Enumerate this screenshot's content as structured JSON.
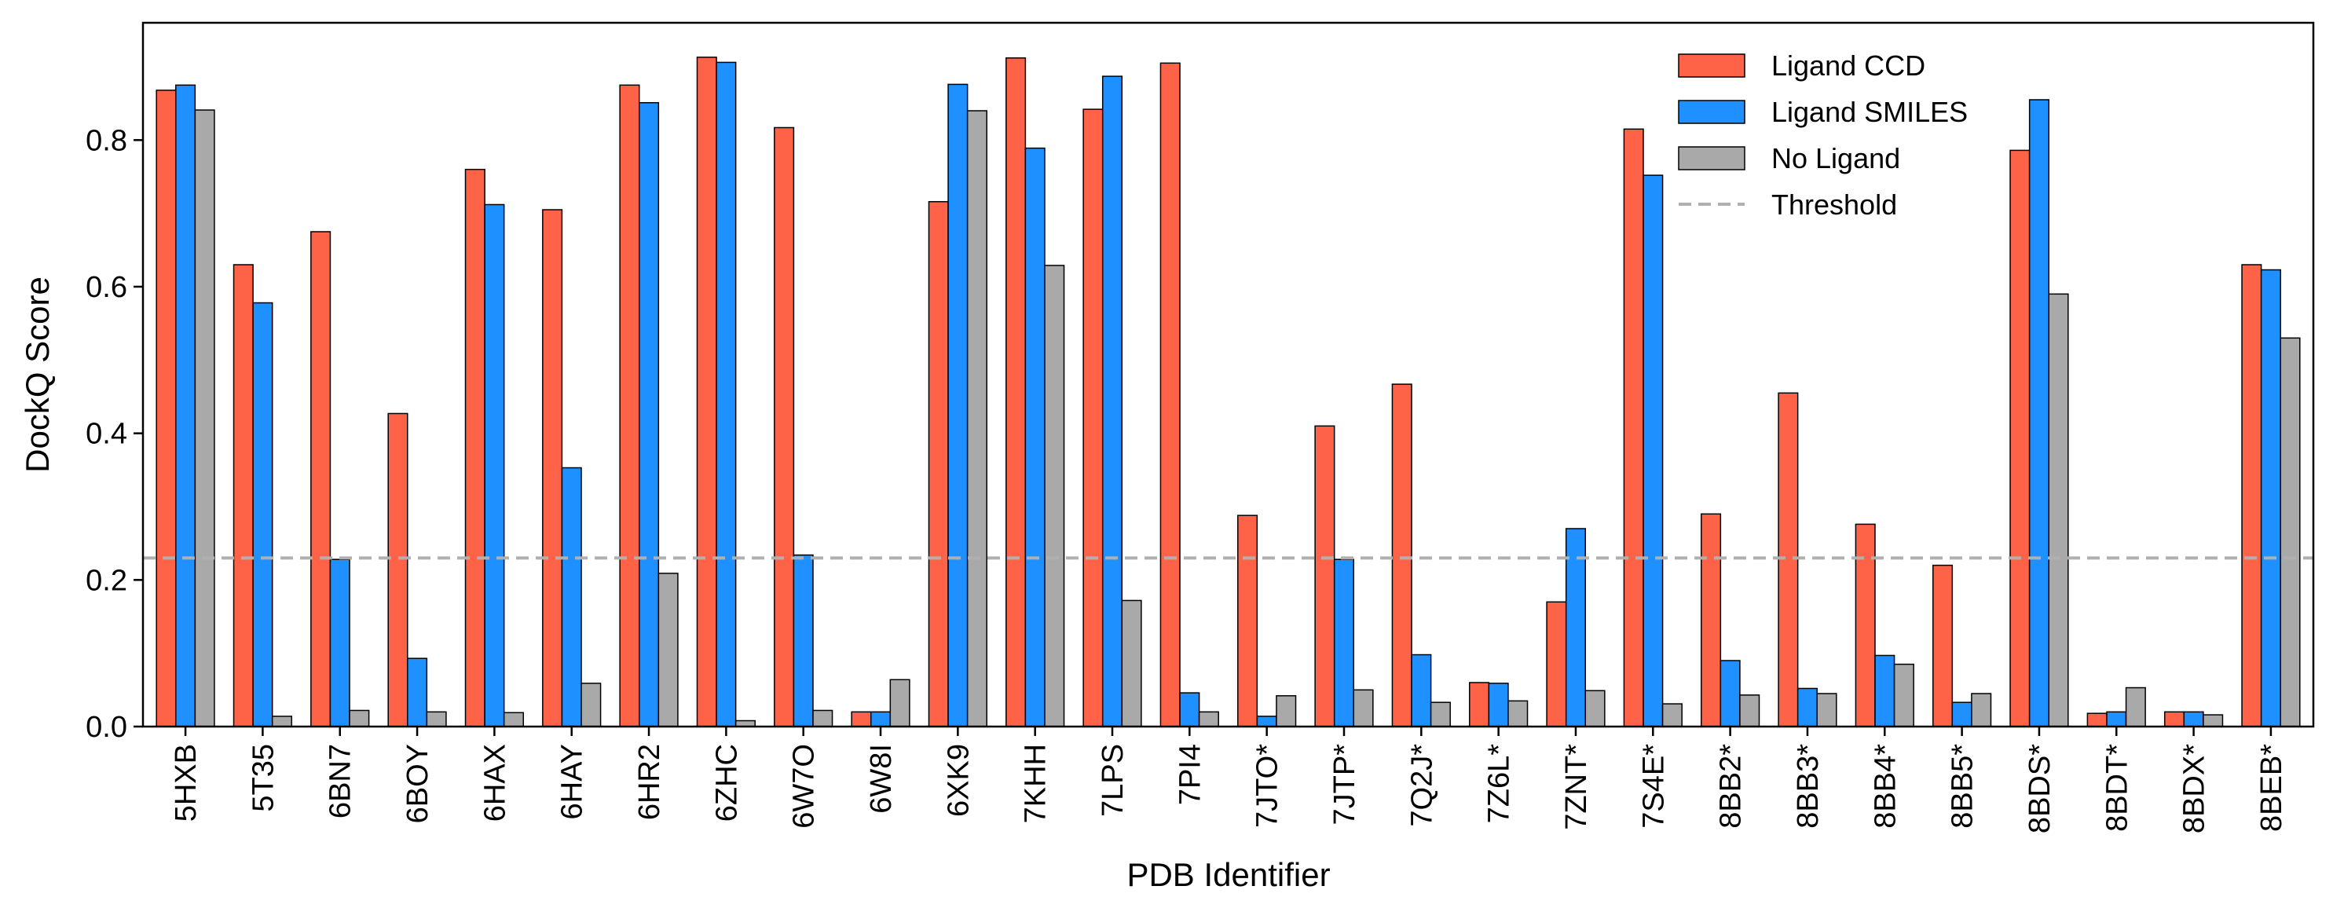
{
  "chart_data": {
    "type": "bar",
    "xlabel": "PDB Identifier",
    "ylabel": "DockQ Score",
    "ylim": [
      0,
      0.96
    ],
    "yticks": [
      "0.0",
      "0.2",
      "0.4",
      "0.6",
      "0.8"
    ],
    "ytick_values": [
      0,
      0.2,
      0.4,
      0.6,
      0.8
    ],
    "categories": [
      "5HXB",
      "5T35",
      "6BN7",
      "6BOY",
      "6HAX",
      "6HAY",
      "6HR2",
      "6ZHC",
      "6W7O",
      "6W8I",
      "6XK9",
      "7KHH",
      "7LPS",
      "7PI4",
      "7JTO*",
      "7JTP*",
      "7Q2J*",
      "7Z6L*",
      "7ZNT*",
      "7S4E*",
      "8BB2*",
      "8BB3*",
      "8BB4*",
      "8BB5*",
      "8BDS*",
      "8BDT*",
      "8BDX*",
      "8BEB*"
    ],
    "series": [
      {
        "name": "Ligand CCD",
        "color": "#ff6347",
        "values": [
          0.868,
          0.63,
          0.675,
          0.427,
          0.76,
          0.705,
          0.875,
          0.913,
          0.817,
          0.02,
          0.716,
          0.912,
          0.842,
          0.905,
          0.288,
          0.41,
          0.467,
          0.06,
          0.17,
          0.815,
          0.29,
          0.455,
          0.276,
          0.22,
          0.786,
          0.018,
          0.02,
          0.63
        ]
      },
      {
        "name": "Ligand SMILES",
        "color": "#1e90ff",
        "values": [
          0.875,
          0.578,
          0.228,
          0.093,
          0.712,
          0.353,
          0.851,
          0.906,
          0.234,
          0.02,
          0.876,
          0.789,
          0.887,
          0.046,
          0.014,
          0.228,
          0.098,
          0.059,
          0.27,
          0.752,
          0.09,
          0.052,
          0.097,
          0.033,
          0.855,
          0.02,
          0.02,
          0.623
        ]
      },
      {
        "name": "No Ligand",
        "color": "#a9a9a9",
        "values": [
          0.841,
          0.014,
          0.022,
          0.02,
          0.019,
          0.059,
          0.209,
          0.008,
          0.022,
          0.064,
          0.84,
          0.629,
          0.172,
          0.02,
          0.042,
          0.05,
          0.033,
          0.035,
          0.049,
          0.031,
          0.043,
          0.045,
          0.085,
          0.045,
          0.59,
          0.053,
          0.016,
          0.53
        ]
      }
    ],
    "threshold": {
      "name": "Threshold",
      "value": 0.23,
      "color": "#b0b0b0",
      "style": "dashed"
    },
    "legend": {
      "placement": "top-right"
    },
    "grid": false
  }
}
